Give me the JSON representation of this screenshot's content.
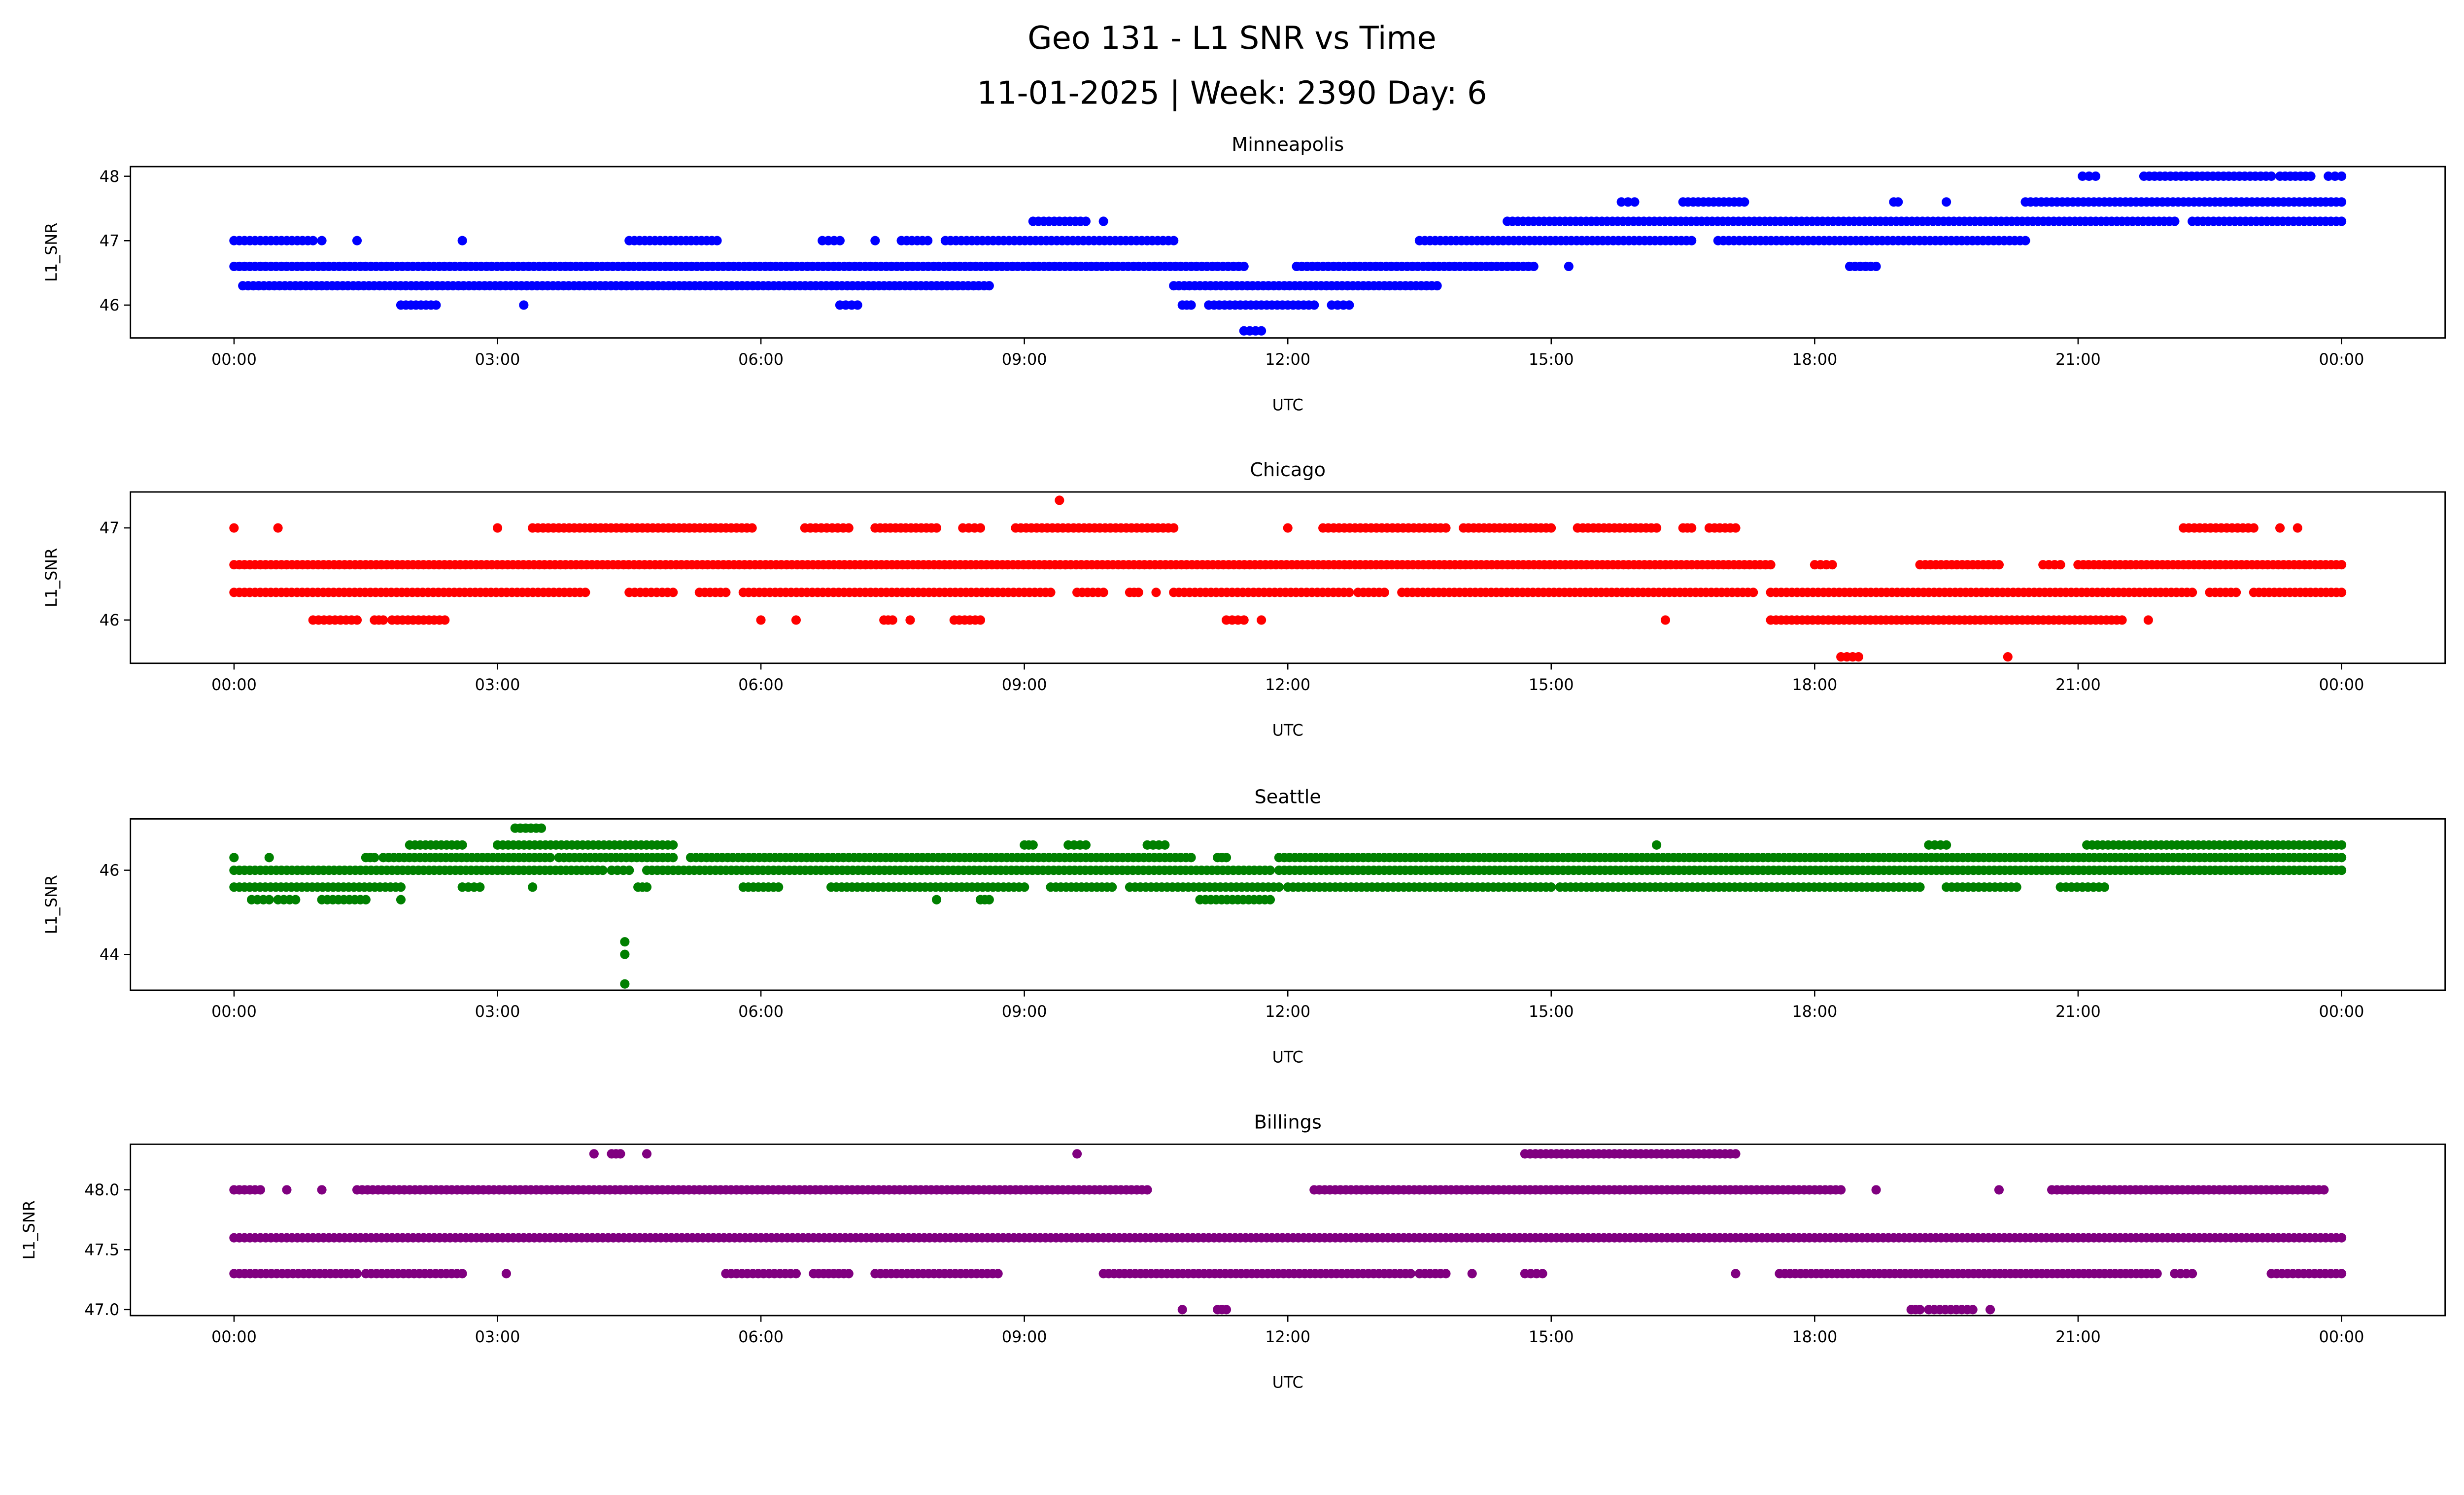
{
  "chart_data": {
    "type": "scatter",
    "title": "Geo 131 - L1 SNR vs Time",
    "subtitle": "11-01-2025 | Week: 2390 Day: 6",
    "xlabel": "UTC",
    "ylabel": "L1_SNR",
    "x_unit": "hours since 00:00 UTC",
    "xlim": [
      -1.18,
      25.18
    ],
    "x_ticks": [
      0,
      3,
      6,
      9,
      12,
      15,
      18,
      21,
      24
    ],
    "x_tick_labels": [
      "00:00",
      "03:00",
      "06:00",
      "09:00",
      "12:00",
      "15:00",
      "18:00",
      "21:00",
      "00:00"
    ],
    "grid": false,
    "panels": [
      {
        "name": "Minneapolis",
        "color": "#0000ff",
        "ylim": [
          45.49,
          48.15
        ],
        "y_ticks": [
          46,
          47,
          48
        ],
        "y_tick_labels": [
          "46",
          "47",
          "48"
        ],
        "runs": [
          {
            "y": 48.0,
            "spans": [
              [
                21.05,
                21.2
              ],
              [
                21.75,
                23.2
              ],
              [
                23.3,
                23.65
              ],
              [
                23.85,
                24
              ]
            ]
          },
          {
            "y": 47.6,
            "spans": [
              [
                15.8,
                15.95
              ],
              [
                16.5,
                17.2
              ],
              [
                18.9,
                18.95
              ],
              [
                19.5,
                19.5
              ],
              [
                20.4,
                24
              ]
            ]
          },
          {
            "y": 47.3,
            "spans": [
              [
                9.1,
                9.7
              ],
              [
                9.9,
                9.9
              ],
              [
                14.5,
                22.1
              ],
              [
                22.3,
                24
              ]
            ]
          },
          {
            "y": 47.0,
            "spans": [
              [
                0,
                0.9
              ],
              [
                1.0,
                1.0
              ],
              [
                1.4,
                1.4
              ],
              [
                2.6,
                2.6
              ],
              [
                4.5,
                5.5
              ],
              [
                6.7,
                6.9
              ],
              [
                7.3,
                7.3
              ],
              [
                7.6,
                7.9
              ],
              [
                8.1,
                10.7
              ],
              [
                13.5,
                16.6
              ],
              [
                16.9,
                20.4
              ]
            ]
          },
          {
            "y": 46.6,
            "spans": [
              [
                0,
                11.5
              ],
              [
                12.1,
                14.8
              ],
              [
                15.2,
                15.2
              ],
              [
                18.4,
                18.7
              ]
            ]
          },
          {
            "y": 46.3,
            "spans": [
              [
                0.1,
                8.6
              ],
              [
                10.7,
                13.7
              ]
            ]
          },
          {
            "y": 46.0,
            "spans": [
              [
                1.9,
                2.3
              ],
              [
                3.3,
                3.3
              ],
              [
                6.9,
                7.1
              ],
              [
                10.8,
                10.9
              ],
              [
                11.1,
                12.3
              ],
              [
                12.5,
                12.7
              ]
            ]
          },
          {
            "y": 45.6,
            "spans": [
              [
                11.5,
                11.7
              ]
            ]
          }
        ]
      },
      {
        "name": "Chicago",
        "color": "#ff0000",
        "ylim": [
          45.53,
          47.39
        ],
        "y_ticks": [
          46,
          47
        ],
        "y_tick_labels": [
          "46",
          "47"
        ],
        "runs": [
          {
            "y": 47.3,
            "spans": [
              [
                9.4,
                9.4
              ]
            ]
          },
          {
            "y": 47.0,
            "spans": [
              [
                0,
                0
              ],
              [
                0.5,
                0.5
              ],
              [
                3.0,
                3.0
              ],
              [
                3.4,
                5.9
              ],
              [
                6.5,
                7.0
              ],
              [
                7.3,
                8.0
              ],
              [
                8.3,
                8.5
              ],
              [
                8.9,
                10.7
              ],
              [
                12.0,
                12.0
              ],
              [
                12.4,
                13.8
              ],
              [
                14.0,
                15.0
              ],
              [
                15.3,
                16.2
              ],
              [
                16.5,
                16.6
              ],
              [
                16.8,
                17.1
              ],
              [
                22.2,
                23.0
              ],
              [
                23.3,
                23.3
              ],
              [
                23.5,
                23.5
              ]
            ]
          },
          {
            "y": 46.6,
            "spans": [
              [
                0,
                17.5
              ],
              [
                18.0,
                18.2
              ],
              [
                19.2,
                20.1
              ],
              [
                20.6,
                20.8
              ],
              [
                21.0,
                24
              ]
            ]
          },
          {
            "y": 46.3,
            "spans": [
              [
                0,
                4.0
              ],
              [
                4.5,
                5.0
              ],
              [
                5.3,
                5.6
              ],
              [
                5.8,
                9.3
              ],
              [
                9.6,
                9.9
              ],
              [
                10.2,
                10.3
              ],
              [
                10.5,
                10.5
              ],
              [
                10.7,
                12.7
              ],
              [
                12.8,
                13.1
              ],
              [
                13.3,
                17.3
              ],
              [
                17.5,
                22.3
              ],
              [
                22.5,
                22.8
              ],
              [
                23.0,
                24
              ]
            ]
          },
          {
            "y": 46.0,
            "spans": [
              [
                0.9,
                1.4
              ],
              [
                1.6,
                1.7
              ],
              [
                1.8,
                2.4
              ],
              [
                6.0,
                6.0
              ],
              [
                6.4,
                6.4
              ],
              [
                7.4,
                7.5
              ],
              [
                7.7,
                7.7
              ],
              [
                8.2,
                8.5
              ],
              [
                11.3,
                11.5
              ],
              [
                11.7,
                11.7
              ],
              [
                16.3,
                16.3
              ],
              [
                17.5,
                21.5
              ],
              [
                21.8,
                21.8
              ]
            ]
          },
          {
            "y": 45.6,
            "spans": [
              [
                18.3,
                18.5
              ],
              [
                20.2,
                20.2
              ]
            ]
          }
        ]
      },
      {
        "name": "Seattle",
        "color": "#008000",
        "ylim": [
          43.15,
          47.22
        ],
        "y_ticks": [
          44,
          46
        ],
        "y_tick_labels": [
          "44",
          "46"
        ],
        "runs": [
          {
            "y": 47.0,
            "spans": [
              [
                3.2,
                3.5
              ]
            ]
          },
          {
            "y": 46.6,
            "spans": [
              [
                2.0,
                2.6
              ],
              [
                3.0,
                5.0
              ],
              [
                9.0,
                9.1
              ],
              [
                9.5,
                9.7
              ],
              [
                10.4,
                10.6
              ],
              [
                16.2,
                16.2
              ],
              [
                19.3,
                19.5
              ],
              [
                21.1,
                24
              ]
            ]
          },
          {
            "y": 46.3,
            "spans": [
              [
                0,
                0
              ],
              [
                0.4,
                0.4
              ],
              [
                1.5,
                1.6
              ],
              [
                1.7,
                3.6
              ],
              [
                3.7,
                5.0
              ],
              [
                5.2,
                10.9
              ],
              [
                11.2,
                11.3
              ],
              [
                11.9,
                24
              ]
            ]
          },
          {
            "y": 46.0,
            "spans": [
              [
                0,
                4.2
              ],
              [
                4.3,
                4.5
              ],
              [
                4.7,
                11.8
              ],
              [
                11.9,
                24
              ]
            ]
          },
          {
            "y": 45.6,
            "spans": [
              [
                0,
                1.9
              ],
              [
                2.6,
                2.8
              ],
              [
                3.4,
                3.4
              ],
              [
                4.6,
                4.7
              ],
              [
                5.8,
                6.2
              ],
              [
                6.8,
                9.0
              ],
              [
                9.3,
                10.0
              ],
              [
                10.2,
                11.9
              ],
              [
                12.0,
                15.0
              ],
              [
                15.1,
                19.2
              ],
              [
                19.5,
                20.3
              ],
              [
                20.8,
                21.3
              ]
            ]
          },
          {
            "y": 45.3,
            "spans": [
              [
                0.2,
                0.4
              ],
              [
                0.5,
                0.7
              ],
              [
                1.0,
                1.5
              ],
              [
                1.9,
                1.9
              ],
              [
                8.0,
                8.0
              ],
              [
                8.5,
                8.6
              ],
              [
                11.0,
                11.8
              ]
            ]
          },
          {
            "y": 44.3,
            "spans": [
              [
                4.45,
                4.45
              ]
            ]
          },
          {
            "y": 44.0,
            "spans": [
              [
                4.45,
                4.45
              ]
            ]
          },
          {
            "y": 43.3,
            "spans": [
              [
                4.45,
                4.45
              ]
            ]
          }
        ]
      },
      {
        "name": "Billings",
        "color": "#800080",
        "ylim": [
          46.95,
          48.38
        ],
        "y_ticks": [
          47.0,
          47.5,
          48.0
        ],
        "y_tick_labels": [
          "47.0",
          "47.5",
          "48.0"
        ],
        "runs": [
          {
            "y": 48.3,
            "spans": [
              [
                4.1,
                4.1
              ],
              [
                4.3,
                4.4
              ],
              [
                4.7,
                4.7
              ],
              [
                9.6,
                9.6
              ],
              [
                14.7,
                17.1
              ]
            ]
          },
          {
            "y": 48.0,
            "spans": [
              [
                0,
                0.3
              ],
              [
                0.6,
                0.6
              ],
              [
                1.0,
                1.0
              ],
              [
                1.4,
                10.4
              ],
              [
                12.3,
                18.3
              ],
              [
                18.7,
                18.7
              ],
              [
                20.1,
                20.1
              ],
              [
                20.7,
                23.8
              ]
            ]
          },
          {
            "y": 47.6,
            "spans": [
              [
                0,
                24
              ]
            ]
          },
          {
            "y": 47.3,
            "spans": [
              [
                0,
                1.4
              ],
              [
                1.5,
                2.6
              ],
              [
                3.1,
                3.1
              ],
              [
                5.6,
                6.4
              ],
              [
                6.6,
                7.0
              ],
              [
                7.3,
                8.7
              ],
              [
                9.9,
                13.4
              ],
              [
                13.5,
                13.8
              ],
              [
                14.1,
                14.1
              ],
              [
                14.7,
                14.9
              ],
              [
                17.1,
                17.1
              ],
              [
                17.6,
                21.9
              ],
              [
                22.1,
                22.3
              ],
              [
                23.2,
                24
              ]
            ]
          },
          {
            "y": 47.0,
            "spans": [
              [
                10.8,
                10.8
              ],
              [
                11.2,
                11.3
              ],
              [
                19.1,
                19.2
              ],
              [
                19.3,
                19.8
              ],
              [
                20.0,
                20.0
              ]
            ]
          }
        ]
      }
    ]
  }
}
